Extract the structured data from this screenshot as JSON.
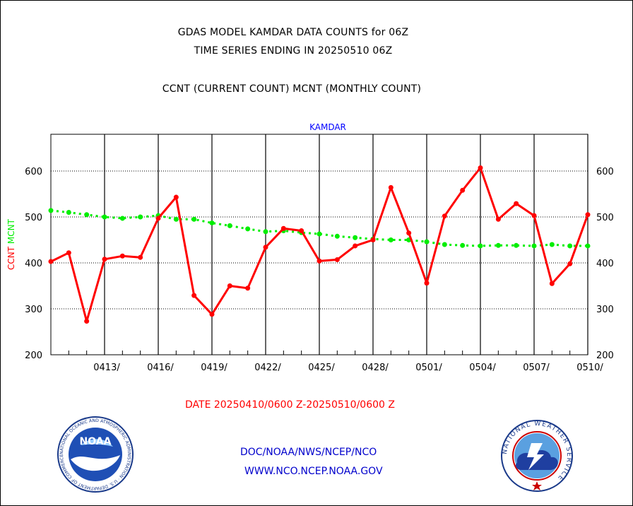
{
  "header": {
    "title_line1": "GDAS MODEL KAMDAR DATA COUNTS for 06Z",
    "title_line2": "TIME SERIES ENDING IN 20250510 06Z",
    "title_line3": "CCNT (CURRENT COUNT) MCNT (MONTHLY COUNT)"
  },
  "footer": {
    "date_range": "DATE 20250410/0600 Z-20250510/0600 Z",
    "org_path": "DOC/NOAA/NWS/NCEP/NCO",
    "website": "WWW.NCO.NCEP.NOAA.GOV"
  },
  "logos": {
    "noaa_text": "NOAA",
    "noaa_ring": "NATIONAL OCEANIC AND ATMOSPHERIC ADMINISTRATION · U.S. DEPARTMENT OF COMMERCE",
    "nws_ring": "NATIONAL WEATHER SERVICE"
  },
  "colors": {
    "ccnt": "#ff0000",
    "mcnt": "#00ee00",
    "subtitle": "#0000ff",
    "footer_link": "#0000cc",
    "date_text": "#ff0000"
  },
  "chart_data": {
    "type": "line",
    "subtitle": "KAMDAR",
    "ylabel_left": [
      "CCNT",
      "MCNT"
    ],
    "ylim": [
      200,
      680
    ],
    "yticks": [
      200,
      300,
      400,
      500,
      600
    ],
    "xticks": [
      "0413/",
      "0416/",
      "0419/",
      "0422/",
      "0425/",
      "0428/",
      "0501/",
      "0504/",
      "0507/",
      "0510/"
    ],
    "grid": true,
    "x": [
      "0410",
      "0411",
      "0412",
      "0413",
      "0414",
      "0415",
      "0416",
      "0417",
      "0418",
      "0419",
      "0420",
      "0421",
      "0422",
      "0423",
      "0424",
      "0425",
      "0426",
      "0427",
      "0428",
      "0429",
      "0430",
      "0501",
      "0502",
      "0503",
      "0504",
      "0505",
      "0506",
      "0507",
      "0508",
      "0509",
      "0510"
    ],
    "series": [
      {
        "name": "CCNT",
        "values": [
          403,
          422,
          273,
          408,
          415,
          412,
          497,
          543,
          329,
          288,
          350,
          345,
          434,
          475,
          470,
          404,
          407,
          437,
          450,
          564,
          465,
          356,
          502,
          558,
          607,
          495,
          529,
          503,
          355,
          398,
          505
        ]
      },
      {
        "name": "MCNT",
        "values": [
          514,
          510,
          505,
          500,
          497,
          500,
          503,
          495,
          495,
          487,
          481,
          474,
          468,
          470,
          466,
          463,
          458,
          455,
          452,
          450,
          450,
          446,
          440,
          438,
          437,
          438,
          438,
          437,
          440,
          437,
          437
        ]
      }
    ]
  }
}
